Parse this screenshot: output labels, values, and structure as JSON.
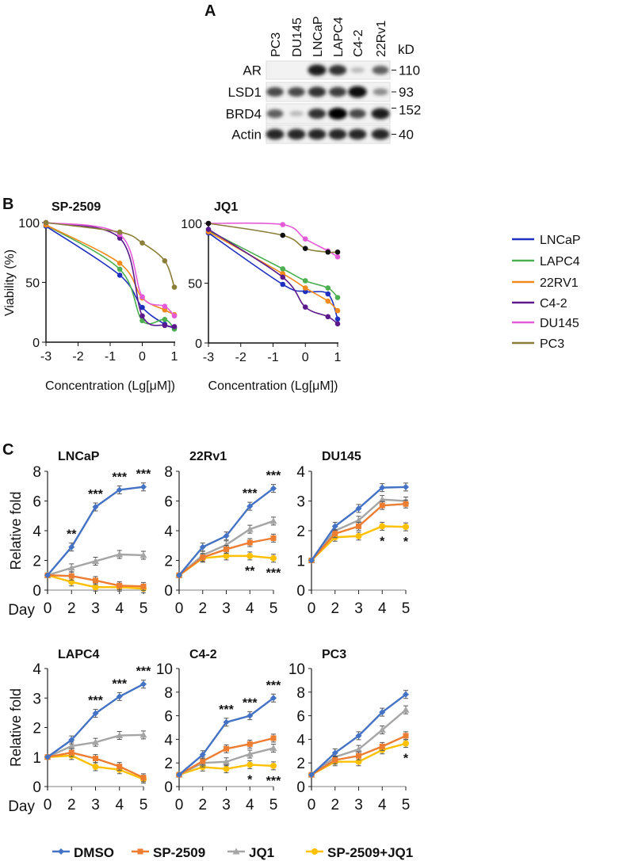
{
  "panel_labels": {
    "a": "A",
    "b": "B",
    "c": "C"
  },
  "western_blot": {
    "lanes": [
      "PC3",
      "DU145",
      "LNCaP",
      "LAPC4",
      "C4-2",
      "22Rv1"
    ],
    "unit_label": "kD",
    "rows": [
      {
        "protein": "AR",
        "mw": "110",
        "band_intensity": [
          0,
          0,
          0.9,
          0.8,
          0.2,
          0.6
        ]
      },
      {
        "protein": "LSD1",
        "mw": "93",
        "band_intensity": [
          0.7,
          0.7,
          0.8,
          0.75,
          0.95,
          0.4
        ]
      },
      {
        "protein": "BRD4",
        "mw": "152",
        "band_intensity": [
          0.6,
          0.2,
          0.8,
          1.0,
          0.7,
          0.9
        ]
      },
      {
        "protein": "Actin",
        "mw": "40",
        "band_intensity": [
          0.85,
          0.85,
          0.85,
          0.85,
          0.85,
          0.85
        ]
      }
    ]
  },
  "chart_data": [
    {
      "type": "scatter",
      "fit": "dose-response curve",
      "title": "SP-2509",
      "xlabel": "Concentration (Lg[μM])",
      "ylabel": "Viability (%)",
      "xlim": [
        -3,
        1
      ],
      "ylim": [
        0,
        100
      ],
      "xticks": [
        -3,
        -2,
        -1,
        0,
        1
      ],
      "yticks": [
        0,
        50,
        100
      ],
      "x": [
        -3,
        -0.7,
        0,
        0.7,
        1
      ],
      "series": [
        {
          "name": "LNCaP",
          "color": "#1f2fbf",
          "values": [
            97,
            56,
            29,
            15,
            12
          ]
        },
        {
          "name": "LAPC4",
          "color": "#4caf50",
          "values": [
            98,
            61,
            18,
            19,
            11
          ]
        },
        {
          "name": "22RV1",
          "color": "#f28a1c",
          "values": [
            98,
            66,
            37,
            27,
            23
          ]
        },
        {
          "name": "C4-2",
          "color": "#5b1a8c",
          "values": [
            100,
            87,
            22,
            14,
            13
          ]
        },
        {
          "name": "DU145",
          "color": "#e55ad8",
          "values": [
            100,
            90,
            38,
            30,
            22
          ]
        },
        {
          "name": "PC3",
          "color": "#8b7d3a",
          "values": [
            100,
            92,
            83,
            68,
            46
          ]
        }
      ]
    },
    {
      "type": "scatter",
      "fit": "dose-response curve",
      "title": "JQ1",
      "xlabel": "Concentration (Lg[μM])",
      "xlim": [
        -3,
        1
      ],
      "ylim": [
        0,
        100
      ],
      "xticks": [
        -3,
        -2,
        -1,
        0,
        1
      ],
      "yticks": [
        0,
        50,
        100
      ],
      "x": [
        -3,
        -0.7,
        0,
        0.7,
        1
      ],
      "series": [
        {
          "name": "LNCaP",
          "color": "#1f2fbf",
          "values": [
            92,
            49,
            43,
            41,
            20
          ]
        },
        {
          "name": "LAPC4",
          "color": "#4caf50",
          "values": [
            94,
            62,
            52,
            46,
            38
          ]
        },
        {
          "name": "22RV1",
          "color": "#f28a1c",
          "values": [
            93,
            58,
            46,
            35,
            27
          ]
        },
        {
          "name": "C4-2",
          "color": "#5b1a8c",
          "values": [
            95,
            55,
            30,
            22,
            16
          ]
        },
        {
          "name": "DU145",
          "color": "#e55ad8",
          "values": [
            100,
            99,
            87,
            77,
            72
          ]
        },
        {
          "name": "PC3",
          "color": "#8b7d3a",
          "point_color": "#111111",
          "values": [
            100,
            90,
            79,
            76,
            76
          ]
        }
      ]
    },
    {
      "type": "line",
      "title": "LNCaP",
      "ylabel": "Relative fold",
      "xlabel": "Day",
      "categories": [
        "0",
        "2",
        "3",
        "4",
        "5"
      ],
      "ylim": [
        0,
        8
      ],
      "yticks": [
        0,
        2,
        4,
        6,
        8
      ],
      "series": [
        {
          "name": "DMSO",
          "values": [
            1,
            2.9,
            5.6,
            6.75,
            6.95
          ]
        },
        {
          "name": "SP-2509",
          "values": [
            1,
            0.95,
            0.65,
            0.3,
            0.25
          ]
        },
        {
          "name": "JQ1",
          "values": [
            1,
            1.5,
            1.95,
            2.4,
            2.35
          ]
        },
        {
          "name": "SP-2509+JQ1",
          "values": [
            1,
            0.55,
            0.2,
            0.2,
            0.1
          ]
        }
      ],
      "annotations": [
        {
          "day": "2",
          "text": "**",
          "position": "above"
        },
        {
          "day": "3",
          "text": "***",
          "position": "above"
        },
        {
          "day": "4",
          "text": "***",
          "position": "above"
        },
        {
          "day": "5",
          "text": "***",
          "position": "above"
        }
      ]
    },
    {
      "type": "line",
      "title": "22Rv1",
      "categories": [
        "0",
        "2",
        "3",
        "4",
        "5"
      ],
      "ylim": [
        0,
        8
      ],
      "yticks": [
        0,
        2,
        4,
        6,
        8
      ],
      "series": [
        {
          "name": "DMSO",
          "values": [
            1,
            2.9,
            3.65,
            5.65,
            6.85
          ]
        },
        {
          "name": "SP-2509",
          "values": [
            1,
            2.2,
            2.75,
            3.2,
            3.5
          ]
        },
        {
          "name": "JQ1",
          "values": [
            1,
            2.35,
            3.05,
            4.1,
            4.65
          ]
        },
        {
          "name": "SP-2509+JQ1",
          "values": [
            1,
            2.15,
            2.3,
            2.3,
            2.15
          ]
        }
      ],
      "annotations": [
        {
          "day": "4",
          "text": "***",
          "position": "above"
        },
        {
          "day": "5",
          "text": "***",
          "position": "above"
        },
        {
          "day": "4",
          "text": "**",
          "position": "below"
        },
        {
          "day": "5",
          "text": "***",
          "position": "below"
        }
      ]
    },
    {
      "type": "line",
      "title": "DU145",
      "categories": [
        "0",
        "2",
        "3",
        "4",
        "5"
      ],
      "ylim": [
        0,
        4
      ],
      "yticks": [
        0,
        1,
        2,
        3,
        4
      ],
      "series": [
        {
          "name": "DMSO",
          "values": [
            1,
            2.15,
            2.75,
            3.45,
            3.47
          ]
        },
        {
          "name": "SP-2509",
          "values": [
            1,
            1.9,
            2.15,
            2.85,
            2.9
          ]
        },
        {
          "name": "JQ1",
          "values": [
            1,
            2.0,
            2.35,
            3.05,
            3.0
          ]
        },
        {
          "name": "SP-2509+JQ1",
          "values": [
            1,
            1.78,
            1.82,
            2.15,
            2.13
          ]
        }
      ],
      "annotations": [
        {
          "day": "4",
          "text": "*",
          "position": "below"
        },
        {
          "day": "5",
          "text": "*",
          "position": "below"
        }
      ]
    },
    {
      "type": "line",
      "title": "LAPC4",
      "ylabel": "Relative fold",
      "xlabel": "Day",
      "categories": [
        "0",
        "2",
        "3",
        "4",
        "5"
      ],
      "ylim": [
        0,
        4
      ],
      "yticks": [
        0,
        1,
        2,
        3,
        4
      ],
      "series": [
        {
          "name": "DMSO",
          "values": [
            1,
            1.58,
            2.48,
            3.05,
            3.47
          ]
        },
        {
          "name": "SP-2509",
          "values": [
            1,
            1.15,
            0.95,
            0.68,
            0.3
          ]
        },
        {
          "name": "JQ1",
          "values": [
            1,
            1.37,
            1.5,
            1.73,
            1.75
          ]
        },
        {
          "name": "SP-2509+JQ1",
          "values": [
            1,
            1.05,
            0.67,
            0.57,
            0.25
          ]
        }
      ],
      "annotations": [
        {
          "day": "3",
          "text": "***",
          "position": "above"
        },
        {
          "day": "4",
          "text": "***",
          "position": "above"
        },
        {
          "day": "5",
          "text": "***",
          "position": "above"
        }
      ]
    },
    {
      "type": "line",
      "title": "C4-2",
      "categories": [
        "0",
        "2",
        "3",
        "4",
        "5"
      ],
      "ylim": [
        0,
        10
      ],
      "yticks": [
        0,
        2,
        4,
        6,
        8,
        10
      ],
      "series": [
        {
          "name": "DMSO",
          "values": [
            1,
            2.7,
            5.45,
            6.0,
            7.5
          ]
        },
        {
          "name": "SP-2509",
          "values": [
            1,
            2.15,
            3.2,
            3.6,
            4.1
          ]
        },
        {
          "name": "JQ1",
          "values": [
            1,
            2.0,
            2.1,
            2.75,
            3.25
          ]
        },
        {
          "name": "SP-2509+JQ1",
          "values": [
            1,
            1.65,
            1.5,
            1.85,
            1.75
          ]
        }
      ],
      "annotations": [
        {
          "day": "3",
          "text": "***",
          "position": "above"
        },
        {
          "day": "4",
          "text": "***",
          "position": "above"
        },
        {
          "day": "5",
          "text": "***",
          "position": "above"
        },
        {
          "day": "4",
          "text": "*",
          "position": "below"
        },
        {
          "day": "5",
          "text": "***",
          "position": "below"
        }
      ]
    },
    {
      "type": "line",
      "title": "PC3",
      "categories": [
        "0",
        "2",
        "3",
        "4",
        "5"
      ],
      "ylim": [
        0,
        10
      ],
      "yticks": [
        0,
        2,
        4,
        6,
        8,
        10
      ],
      "series": [
        {
          "name": "DMSO",
          "values": [
            1,
            2.85,
            4.3,
            6.3,
            7.8
          ]
        },
        {
          "name": "SP-2509",
          "values": [
            1,
            2.25,
            2.6,
            3.4,
            4.3
          ]
        },
        {
          "name": "JQ1",
          "values": [
            1,
            2.5,
            3.15,
            4.8,
            6.5
          ]
        },
        {
          "name": "SP-2509+JQ1",
          "values": [
            1,
            2.1,
            2.1,
            3.1,
            3.65
          ]
        }
      ],
      "annotations": [
        {
          "day": "5",
          "text": "*",
          "position": "below"
        }
      ]
    }
  ],
  "growth_legend": [
    {
      "name": "DMSO",
      "color": "#4472C4",
      "marker": "diamond"
    },
    {
      "name": "SP-2509",
      "color": "#ED7D31",
      "marker": "square"
    },
    {
      "name": "JQ1",
      "color": "#A5A5A5",
      "marker": "triangle"
    },
    {
      "name": "SP-2509+JQ1",
      "color": "#FFC000",
      "marker": "circle"
    }
  ]
}
